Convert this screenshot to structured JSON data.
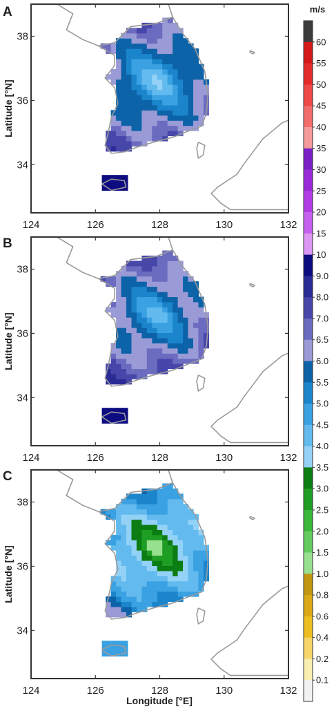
{
  "figure": {
    "colorbar_unit": "m/s",
    "panel_labels": [
      "A",
      "B",
      "C"
    ],
    "colorbar_ticks": [
      "60",
      "55",
      "50",
      "45",
      "40",
      "35",
      "30",
      "25",
      "20",
      "15",
      "10",
      "9.0",
      "8.0",
      "7.0",
      "6.5",
      "6.0",
      "5.5",
      "5.0",
      "4.5",
      "4.0",
      "3.5",
      "3.0",
      "2.5",
      "2.0",
      "1.5",
      "1.0",
      "0.8",
      "0.6",
      "0.4",
      "0.2",
      "0.1"
    ],
    "colorbar_colors": [
      "#3c3c3c",
      "#d51919",
      "#e52a2a",
      "#ef4848",
      "#f36c6c",
      "#f49a9a",
      "#7b1fc7",
      "#9a2ad9",
      "#b23ce6",
      "#c860ef",
      "#dc96f3",
      "#0c0c80",
      "#2b2b96",
      "#4747aa",
      "#6b6bc0",
      "#9a9ad6",
      "#0d63a8",
      "#1b85cc",
      "#3aa1e2",
      "#62baee",
      "#93d2f6",
      "#0c7d12",
      "#1f9e24",
      "#39b83a",
      "#63cc5e",
      "#97e08e",
      "#c09611",
      "#dba815",
      "#eebe20",
      "#f6d668",
      "#f8eeb0",
      "#f2f2f2"
    ]
  },
  "chart_data": [
    {
      "type": "heatmap",
      "panel": "A",
      "xlabel": "",
      "ylabel": "Latitude [°N]",
      "xlim": [
        124,
        132
      ],
      "ylim": [
        32.5,
        39
      ],
      "x_ticks": [
        "124",
        "126",
        "128",
        "130",
        "132"
      ],
      "y_ticks": [
        "38",
        "36",
        "34"
      ],
      "dominant_range": "4.0–6.0 m/s"
    },
    {
      "type": "heatmap",
      "panel": "B",
      "xlabel": "",
      "ylabel": "Latitude [°N]",
      "xlim": [
        124,
        132
      ],
      "ylim": [
        32.5,
        39
      ],
      "x_ticks": [
        "124",
        "126",
        "128",
        "130",
        "132"
      ],
      "y_ticks": [
        "38",
        "36",
        "34"
      ],
      "dominant_range": "4.0–6.0 m/s"
    },
    {
      "type": "heatmap",
      "panel": "C",
      "xlabel": "Longitude [°E]",
      "ylabel": "Latitude [°N]",
      "xlim": [
        124,
        132
      ],
      "ylim": [
        32.5,
        39
      ],
      "x_ticks": [
        "124",
        "126",
        "128",
        "130",
        "132"
      ],
      "y_ticks": [
        "38",
        "36",
        "34"
      ],
      "dominant_range": "2.5–5.0 m/s"
    }
  ]
}
